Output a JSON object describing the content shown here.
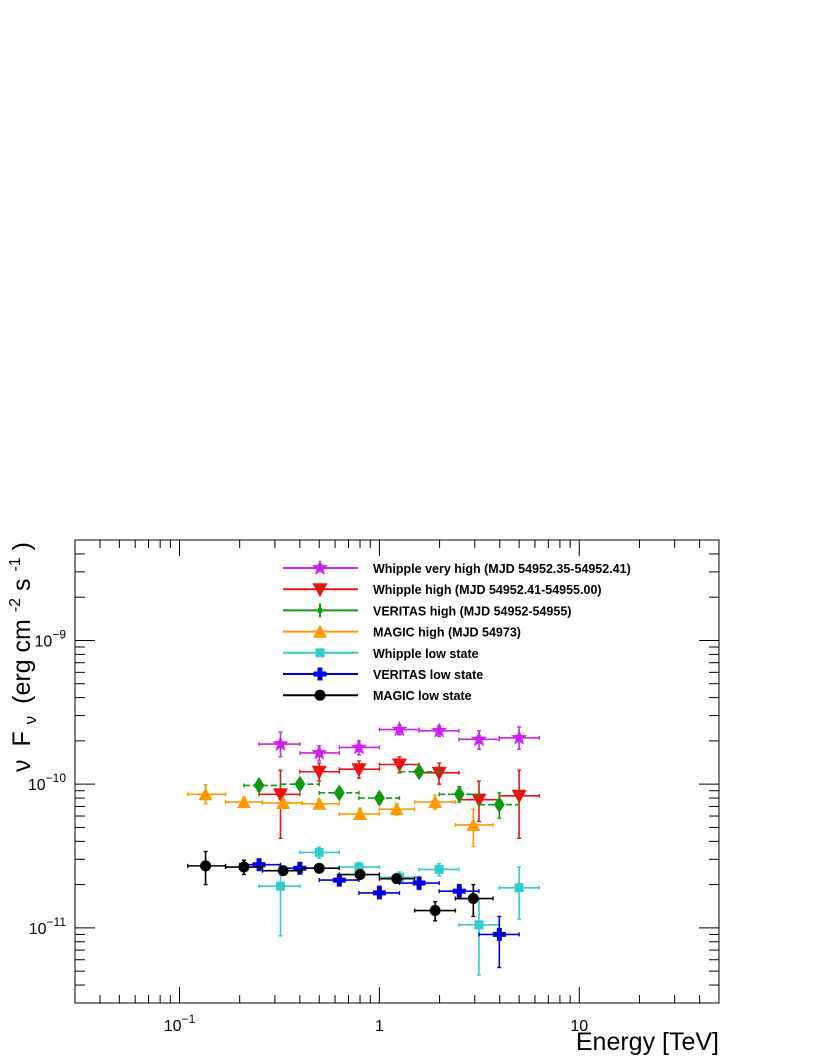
{
  "chart_data": {
    "type": "scatter",
    "xscale": "log",
    "yscale": "log",
    "xlim": [
      0.03,
      50
    ],
    "ylim": [
      3e-12,
      5e-09
    ],
    "xlabel": "Energy [TeV]",
    "ylabel": "ν F_ν (erg cm^-2 s^-1)",
    "ylabel_parts": {
      "nu": "ν",
      "F": "F",
      "sub": "ν",
      "a": "(erg cm",
      "e1": "-2",
      "b": " s",
      "e2": "-1",
      "c": ")"
    },
    "x_ticks": [
      {
        "value": 0.1,
        "base": "10",
        "exp": "−1"
      },
      {
        "value": 1,
        "base": "1",
        "exp": ""
      },
      {
        "value": 10,
        "base": "10",
        "exp": ""
      }
    ],
    "y_ticks": [
      {
        "value": 1e-11,
        "base": "10",
        "exp": "−11"
      },
      {
        "value": 1e-10,
        "base": "10",
        "exp": "−10"
      },
      {
        "value": 1e-09,
        "base": "10",
        "exp": "−9"
      }
    ],
    "legend_position": "top-center",
    "series": [
      {
        "name": "Whipple very high (MJD 54952.35-54952.41)",
        "color": "#cc22ee",
        "marker": "star",
        "points": [
          {
            "x": 0.32,
            "y": 1.9e-10,
            "xlo": 0.25,
            "xhi": 0.4,
            "ylo": 1.55e-10,
            "yhi": 2.3e-10
          },
          {
            "x": 0.5,
            "y": 1.65e-10,
            "xlo": 0.4,
            "xhi": 0.63,
            "ylo": 1.45e-10,
            "yhi": 1.85e-10
          },
          {
            "x": 0.79,
            "y": 1.8e-10,
            "xlo": 0.63,
            "xhi": 1.0,
            "ylo": 1.6e-10,
            "yhi": 2e-10
          },
          {
            "x": 1.26,
            "y": 2.4e-10,
            "xlo": 1.0,
            "xhi": 1.58,
            "ylo": 2.2e-10,
            "yhi": 2.6e-10
          },
          {
            "x": 1.99,
            "y": 2.35e-10,
            "xlo": 1.58,
            "xhi": 2.5,
            "ylo": 2.15e-10,
            "yhi": 2.55e-10
          },
          {
            "x": 3.15,
            "y": 2.05e-10,
            "xlo": 2.5,
            "xhi": 3.98,
            "ylo": 1.75e-10,
            "yhi": 2.35e-10
          },
          {
            "x": 5.0,
            "y": 2.1e-10,
            "xlo": 3.98,
            "xhi": 6.3,
            "ylo": 1.75e-10,
            "yhi": 2.5e-10
          }
        ]
      },
      {
        "name": "Whipple high (MJD 54952.41-54955.00)",
        "color": "#ee1111",
        "marker": "triangle-down",
        "points": [
          {
            "x": 0.32,
            "y": 8.5e-11,
            "xlo": 0.25,
            "xhi": 0.4,
            "ylo": 4.2e-11,
            "yhi": 1.25e-10
          },
          {
            "x": 0.5,
            "y": 1.22e-10,
            "xlo": 0.4,
            "xhi": 0.63,
            "ylo": 1.05e-10,
            "yhi": 1.4e-10
          },
          {
            "x": 0.79,
            "y": 1.27e-10,
            "xlo": 0.63,
            "xhi": 1.0,
            "ylo": 1.1e-10,
            "yhi": 1.45e-10
          },
          {
            "x": 1.26,
            "y": 1.37e-10,
            "xlo": 1.0,
            "xhi": 1.58,
            "ylo": 1.2e-10,
            "yhi": 1.55e-10
          },
          {
            "x": 1.99,
            "y": 1.2e-10,
            "xlo": 1.58,
            "xhi": 2.5,
            "ylo": 1e-10,
            "yhi": 1.4e-10
          },
          {
            "x": 3.15,
            "y": 7.8e-11,
            "xlo": 2.5,
            "xhi": 3.98,
            "ylo": 5.5e-11,
            "yhi": 1.05e-10
          },
          {
            "x": 5.0,
            "y": 8.3e-11,
            "xlo": 3.98,
            "xhi": 6.3,
            "ylo": 4.2e-11,
            "yhi": 1.25e-10
          }
        ]
      },
      {
        "name": "VERITAS high (MJD 54952-54955)",
        "color": "#119911",
        "marker": "diamond",
        "points": [
          {
            "x": 0.25,
            "y": 9.8e-11,
            "xlo": 0.21,
            "xhi": 0.32,
            "ylo": 9e-11,
            "yhi": 1.06e-10
          },
          {
            "x": 0.4,
            "y": 1e-10,
            "xlo": 0.32,
            "xhi": 0.5,
            "ylo": 9.2e-11,
            "yhi": 1.08e-10
          },
          {
            "x": 0.63,
            "y": 8.7e-11,
            "xlo": 0.5,
            "xhi": 0.79,
            "ylo": 8e-11,
            "yhi": 9.4e-11
          },
          {
            "x": 1.0,
            "y": 8e-11,
            "xlo": 0.79,
            "xhi": 1.26,
            "ylo": 7.3e-11,
            "yhi": 8.7e-11
          },
          {
            "x": 1.58,
            "y": 1.22e-10,
            "xlo": 1.26,
            "xhi": 1.99,
            "ylo": 1.12e-10,
            "yhi": 1.32e-10
          },
          {
            "x": 2.51,
            "y": 8.5e-11,
            "xlo": 1.99,
            "xhi": 3.15,
            "ylo": 7.5e-11,
            "yhi": 9.6e-11
          },
          {
            "x": 3.98,
            "y": 7.2e-11,
            "xlo": 3.15,
            "xhi": 5.0,
            "ylo": 5.8e-11,
            "yhi": 8.7e-11
          }
        ]
      },
      {
        "name": "MAGIC high (MJD 54973)",
        "color": "#ff9900",
        "marker": "triangle-up",
        "points": [
          {
            "x": 0.135,
            "y": 8.5e-11,
            "xlo": 0.11,
            "xhi": 0.17,
            "ylo": 7.3e-11,
            "yhi": 9.9e-11
          },
          {
            "x": 0.21,
            "y": 7.5e-11,
            "xlo": 0.17,
            "xhi": 0.26,
            "ylo": 6.9e-11,
            "yhi": 8.1e-11
          },
          {
            "x": 0.33,
            "y": 7.4e-11,
            "xlo": 0.26,
            "xhi": 0.41,
            "ylo": 6.9e-11,
            "yhi": 7.9e-11
          },
          {
            "x": 0.5,
            "y": 7.3e-11,
            "xlo": 0.41,
            "xhi": 0.63,
            "ylo": 6.8e-11,
            "yhi": 7.8e-11
          },
          {
            "x": 0.8,
            "y": 6.2e-11,
            "xlo": 0.63,
            "xhi": 1.0,
            "ylo": 5.7e-11,
            "yhi": 6.8e-11
          },
          {
            "x": 1.22,
            "y": 6.7e-11,
            "xlo": 1.0,
            "xhi": 1.5,
            "ylo": 6.1e-11,
            "yhi": 7.3e-11
          },
          {
            "x": 1.9,
            "y": 7.5e-11,
            "xlo": 1.5,
            "xhi": 2.4,
            "ylo": 6.7e-11,
            "yhi": 8.4e-11
          },
          {
            "x": 2.95,
            "y": 5.2e-11,
            "xlo": 2.4,
            "xhi": 3.7,
            "ylo": 3.7e-11,
            "yhi": 6.7e-11
          }
        ]
      },
      {
        "name": "Whipple low state",
        "color": "#33cccc",
        "marker": "square",
        "points": [
          {
            "x": 0.32,
            "y": 1.95e-11,
            "xlo": 0.25,
            "xhi": 0.4,
            "ylo": 8.8e-12,
            "yhi": 2.7e-11
          },
          {
            "x": 0.5,
            "y": 3.35e-11,
            "xlo": 0.4,
            "xhi": 0.63,
            "ylo": 3.05e-11,
            "yhi": 3.65e-11
          },
          {
            "x": 0.79,
            "y": 2.65e-11,
            "xlo": 0.63,
            "xhi": 1.0,
            "ylo": 2.45e-11,
            "yhi": 2.85e-11
          },
          {
            "x": 1.26,
            "y": 2.25e-11,
            "xlo": 1.0,
            "xhi": 1.58,
            "ylo": 2.05e-11,
            "yhi": 2.45e-11
          },
          {
            "x": 1.99,
            "y": 2.55e-11,
            "xlo": 1.58,
            "xhi": 2.5,
            "ylo": 2.3e-11,
            "yhi": 2.8e-11
          },
          {
            "x": 3.15,
            "y": 1.05e-11,
            "xlo": 2.5,
            "xhi": 3.98,
            "ylo": 4.7e-12,
            "yhi": 1.6e-11
          },
          {
            "x": 5.0,
            "y": 1.9e-11,
            "xlo": 3.98,
            "xhi": 6.3,
            "ylo": 1.15e-11,
            "yhi": 2.65e-11
          }
        ]
      },
      {
        "name": "VERITAS low state",
        "color": "#0000dd",
        "marker": "cross",
        "points": [
          {
            "x": 0.25,
            "y": 2.75e-11,
            "xlo": 0.2,
            "xhi": 0.32,
            "ylo": 2.6e-11,
            "yhi": 2.9e-11
          },
          {
            "x": 0.4,
            "y": 2.6e-11,
            "xlo": 0.32,
            "xhi": 0.5,
            "ylo": 2.45e-11,
            "yhi": 2.75e-11
          },
          {
            "x": 0.63,
            "y": 2.15e-11,
            "xlo": 0.5,
            "xhi": 0.79,
            "ylo": 2e-11,
            "yhi": 2.3e-11
          },
          {
            "x": 1.0,
            "y": 1.75e-11,
            "xlo": 0.79,
            "xhi": 1.26,
            "ylo": 1.6e-11,
            "yhi": 1.95e-11
          },
          {
            "x": 1.58,
            "y": 2.05e-11,
            "xlo": 1.26,
            "xhi": 1.99,
            "ylo": 1.85e-11,
            "yhi": 2.25e-11
          },
          {
            "x": 2.51,
            "y": 1.8e-11,
            "xlo": 1.99,
            "xhi": 3.15,
            "ylo": 1.6e-11,
            "yhi": 2e-11
          },
          {
            "x": 3.98,
            "y": 9e-12,
            "xlo": 3.15,
            "xhi": 5.0,
            "ylo": 5.3e-12,
            "yhi": 1.2e-11
          }
        ]
      },
      {
        "name": "MAGIC low state",
        "color": "#000000",
        "marker": "circle",
        "points": [
          {
            "x": 0.135,
            "y": 2.7e-11,
            "xlo": 0.11,
            "xhi": 0.17,
            "ylo": 2e-11,
            "yhi": 3.4e-11
          },
          {
            "x": 0.21,
            "y": 2.65e-11,
            "xlo": 0.17,
            "xhi": 0.26,
            "ylo": 2.35e-11,
            "yhi": 2.95e-11
          },
          {
            "x": 0.33,
            "y": 2.5e-11,
            "xlo": 0.26,
            "xhi": 0.41,
            "ylo": 2.35e-11,
            "yhi": 2.65e-11
          },
          {
            "x": 0.5,
            "y": 2.6e-11,
            "xlo": 0.41,
            "xhi": 0.63,
            "ylo": 2.45e-11,
            "yhi": 2.75e-11
          },
          {
            "x": 0.8,
            "y": 2.35e-11,
            "xlo": 0.63,
            "xhi": 1.0,
            "ylo": 2.2e-11,
            "yhi": 2.5e-11
          },
          {
            "x": 1.22,
            "y": 2.2e-11,
            "xlo": 1.0,
            "xhi": 1.5,
            "ylo": 2.05e-11,
            "yhi": 2.35e-11
          },
          {
            "x": 1.9,
            "y": 1.32e-11,
            "xlo": 1.5,
            "xhi": 2.4,
            "ylo": 1.12e-11,
            "yhi": 1.52e-11
          },
          {
            "x": 2.95,
            "y": 1.6e-11,
            "xlo": 2.4,
            "xhi": 3.7,
            "ylo": 1.2e-11,
            "yhi": 2e-11
          }
        ]
      }
    ]
  }
}
